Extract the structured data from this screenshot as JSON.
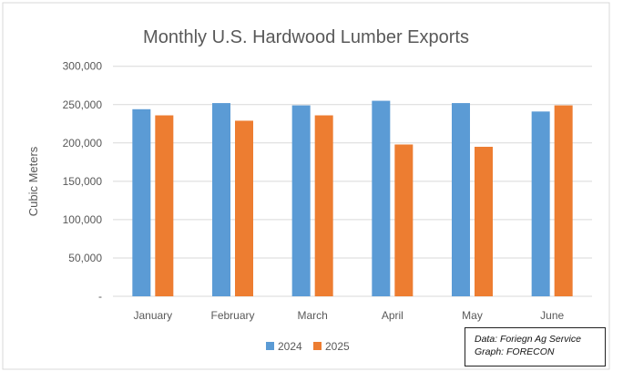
{
  "chart_data": {
    "type": "bar",
    "title": "Monthly U.S. Hardwood Lumber Exports",
    "xlabel": "",
    "ylabel": "Cubic Meters",
    "categories": [
      "January",
      "February",
      "March",
      "April",
      "May",
      "June"
    ],
    "series": [
      {
        "name": "2024",
        "color": "#5b9bd5",
        "values": [
          244000,
          252000,
          249000,
          255000,
          252000,
          241000
        ]
      },
      {
        "name": "2025",
        "color": "#ed7d31",
        "values": [
          236000,
          229000,
          236000,
          198000,
          195000,
          249000
        ]
      }
    ],
    "ylim": [
      0,
      300000
    ],
    "yticks": [
      0,
      50000,
      100000,
      150000,
      200000,
      250000,
      300000
    ],
    "ytick_labels": [
      "-",
      "50,000",
      "100,000",
      "150,000",
      "200,000",
      "250,000",
      "300,000"
    ],
    "grid": true,
    "legend_position": "bottom"
  },
  "source_note": {
    "line1": "Data: Foriegn Ag Service",
    "line2": "Graph: FORECON"
  }
}
